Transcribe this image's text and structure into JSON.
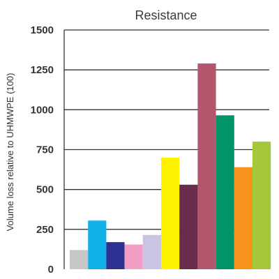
{
  "chart_data": {
    "type": "bar",
    "title": "Resistance",
    "xlabel": "",
    "ylabel": "Volume loss relative to UHMWPE (100)",
    "ylim": [
      0,
      1500
    ],
    "yticks": [
      0,
      250,
      500,
      750,
      1000,
      1250,
      1500
    ],
    "ytick_labels": [
      "0",
      "250",
      "500",
      "750",
      "1000",
      "1250",
      "1500"
    ],
    "grid": "horizontal",
    "legend": "none",
    "bars": [
      {
        "value": 120,
        "color": "#c6c6c6"
      },
      {
        "value": 305,
        "color": "#12b1e9"
      },
      {
        "value": 170,
        "color": "#2e3191"
      },
      {
        "value": 155,
        "color": "#f29fc5"
      },
      {
        "value": 215,
        "color": "#c8c4e2"
      },
      {
        "value": 700,
        "color": "#fef200"
      },
      {
        "value": 530,
        "color": "#6a2c4c"
      },
      {
        "value": 1290,
        "color": "#b5566f"
      },
      {
        "value": 965,
        "color": "#009468"
      },
      {
        "value": 640,
        "color": "#f7931d"
      },
      {
        "value": 800,
        "color": "#a5c83a"
      }
    ]
  }
}
